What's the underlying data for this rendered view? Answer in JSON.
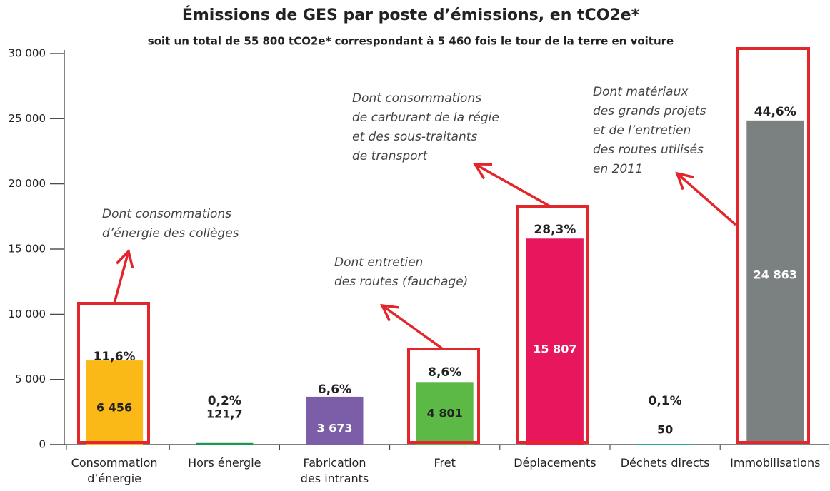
{
  "chart_data": {
    "type": "bar",
    "title": "Émissions de GES par poste d’émissions, en tCO2e*",
    "subtitle": "soit un total de 55 800 tCO2e* correspondant à 5 460 fois le tour de la terre en voiture",
    "categories": [
      "Consommation\nd’énergie",
      "Hors énergie",
      "Fabrication\ndes intrants",
      "Fret",
      "Déplacements",
      "Déchets directs",
      "Immobilisations"
    ],
    "values": [
      6456,
      121.7,
      3673,
      4801,
      15807,
      50,
      24863
    ],
    "value_labels": [
      "6 456",
      "121,7",
      "3 673",
      "4 801",
      "15 807",
      "50",
      "24 863"
    ],
    "percents": [
      11.6,
      0.2,
      6.6,
      8.6,
      28.3,
      0.1,
      44.6
    ],
    "percent_labels": [
      "11,6%",
      "0,2%",
      "6,6%",
      "8,6%",
      "28,3%",
      "0,1%",
      "44,6%"
    ],
    "colors": [
      "#fbb917",
      "#1a9850",
      "#7b5ea7",
      "#5cb946",
      "#e8175d",
      "#2aa198",
      "#7b8180"
    ],
    "ylim": [
      0,
      30000
    ],
    "yticks": [
      0,
      {
        "value": 5000,
        "label": "5 000"
      },
      {
        "value": 10000,
        "label": "10 000"
      },
      {
        "value": 15000,
        "label": "15 000"
      },
      {
        "value": 20000,
        "label": "20 000"
      },
      {
        "value": 25000,
        "label": "25 000"
      },
      {
        "value": 30000,
        "label": "30 000"
      }
    ],
    "annotations": [
      {
        "lines": [
          "Dont consommations",
          "d’énergie des collèges"
        ]
      },
      {
        "lines": [
          "Dont entretien",
          "des routes (fauchage)"
        ]
      },
      {
        "lines": [
          "Dont consommations",
          "de carburant de la régie",
          "et des sous-traitants",
          "de transport"
        ]
      },
      {
        "lines": [
          "Dont matériaux",
          "des grands projets",
          "et de l’entretien",
          "des routes utilisés",
          "en 2011"
        ]
      }
    ]
  }
}
